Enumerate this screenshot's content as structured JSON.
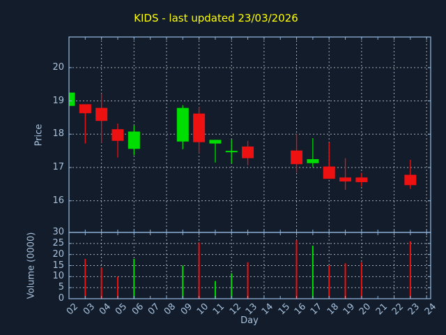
{
  "chart_data": {
    "type": "candlestick+volume",
    "title": "KIDS - last updated 23/03/2026",
    "xlabel": "Day",
    "price_ylabel": "Price",
    "volume_ylabel": "Volume (0000)",
    "x_tick_labels": [
      "02",
      "03",
      "04",
      "05",
      "06",
      "07",
      "08",
      "09",
      "10",
      "11",
      "12",
      "13",
      "14",
      "15",
      "16",
      "17",
      "18",
      "19",
      "20",
      "21",
      "22",
      "23",
      "24"
    ],
    "price_yticks": [
      16,
      17,
      18,
      19,
      20
    ],
    "volume_yticks": [
      0,
      5,
      10,
      15,
      20,
      25,
      30
    ],
    "price_ylim": [
      15.05,
      20.92
    ],
    "volume_ylim": [
      0,
      30
    ],
    "xlim_days": [
      2,
      24.25
    ],
    "grid_vertical_days": [
      4,
      6,
      8,
      10,
      12,
      14,
      16,
      18,
      20,
      22,
      24
    ],
    "legend_position": "none",
    "candles": [
      {
        "day": "02",
        "open": 18.85,
        "high": 19.25,
        "low": 18.85,
        "close": 19.25,
        "volume": null
      },
      {
        "day": "03",
        "open": 18.9,
        "high": 18.9,
        "low": 17.72,
        "close": 18.63,
        "volume": 18
      },
      {
        "day": "04",
        "open": 18.79,
        "high": 19.22,
        "low": 17.74,
        "close": 18.4,
        "volume": 14
      },
      {
        "day": "05",
        "open": 18.15,
        "high": 18.32,
        "low": 17.3,
        "close": 17.8,
        "volume": 10
      },
      {
        "day": "06",
        "open": 17.56,
        "high": 18.26,
        "low": 17.37,
        "close": 18.08,
        "volume": 18
      },
      {
        "day": "09",
        "open": 17.78,
        "high": 18.87,
        "low": 17.55,
        "close": 18.79,
        "volume": 15
      },
      {
        "day": "10",
        "open": 18.62,
        "high": 18.82,
        "low": 17.43,
        "close": 17.76,
        "volume": 25.5
      },
      {
        "day": "11",
        "open": 17.72,
        "high": 17.83,
        "low": 17.15,
        "close": 17.83,
        "volume": 8
      },
      {
        "day": "12",
        "open": 17.48,
        "high": 17.84,
        "low": 17.12,
        "close": 17.5,
        "volume": 11.5
      },
      {
        "day": "13",
        "open": 17.63,
        "high": 17.8,
        "low": 17.07,
        "close": 17.28,
        "volume": 16.5
      },
      {
        "day": "16",
        "open": 17.51,
        "high": 18.0,
        "low": 16.85,
        "close": 17.1,
        "volume": 26.5
      },
      {
        "day": "17",
        "open": 17.13,
        "high": 17.88,
        "low": 17.01,
        "close": 17.25,
        "volume": 24
      },
      {
        "day": "18",
        "open": 17.03,
        "high": 17.75,
        "low": 16.66,
        "close": 16.66,
        "volume": 15
      },
      {
        "day": "19",
        "open": 16.7,
        "high": 17.28,
        "low": 16.33,
        "close": 16.58,
        "volume": 16
      },
      {
        "day": "20",
        "open": 16.7,
        "high": 16.84,
        "low": 16.43,
        "close": 16.56,
        "volume": 16.5
      },
      {
        "day": "23",
        "open": 16.78,
        "high": 17.23,
        "low": 16.36,
        "close": 16.47,
        "volume": 26
      }
    ],
    "colors": {
      "background": "#121c2b",
      "up": "#00dd00",
      "down": "#ee1111",
      "title": "#ffff00",
      "spine": "#8fb2d6",
      "tick_text": "#a9c3de",
      "grid": "#c3c9d0"
    }
  }
}
